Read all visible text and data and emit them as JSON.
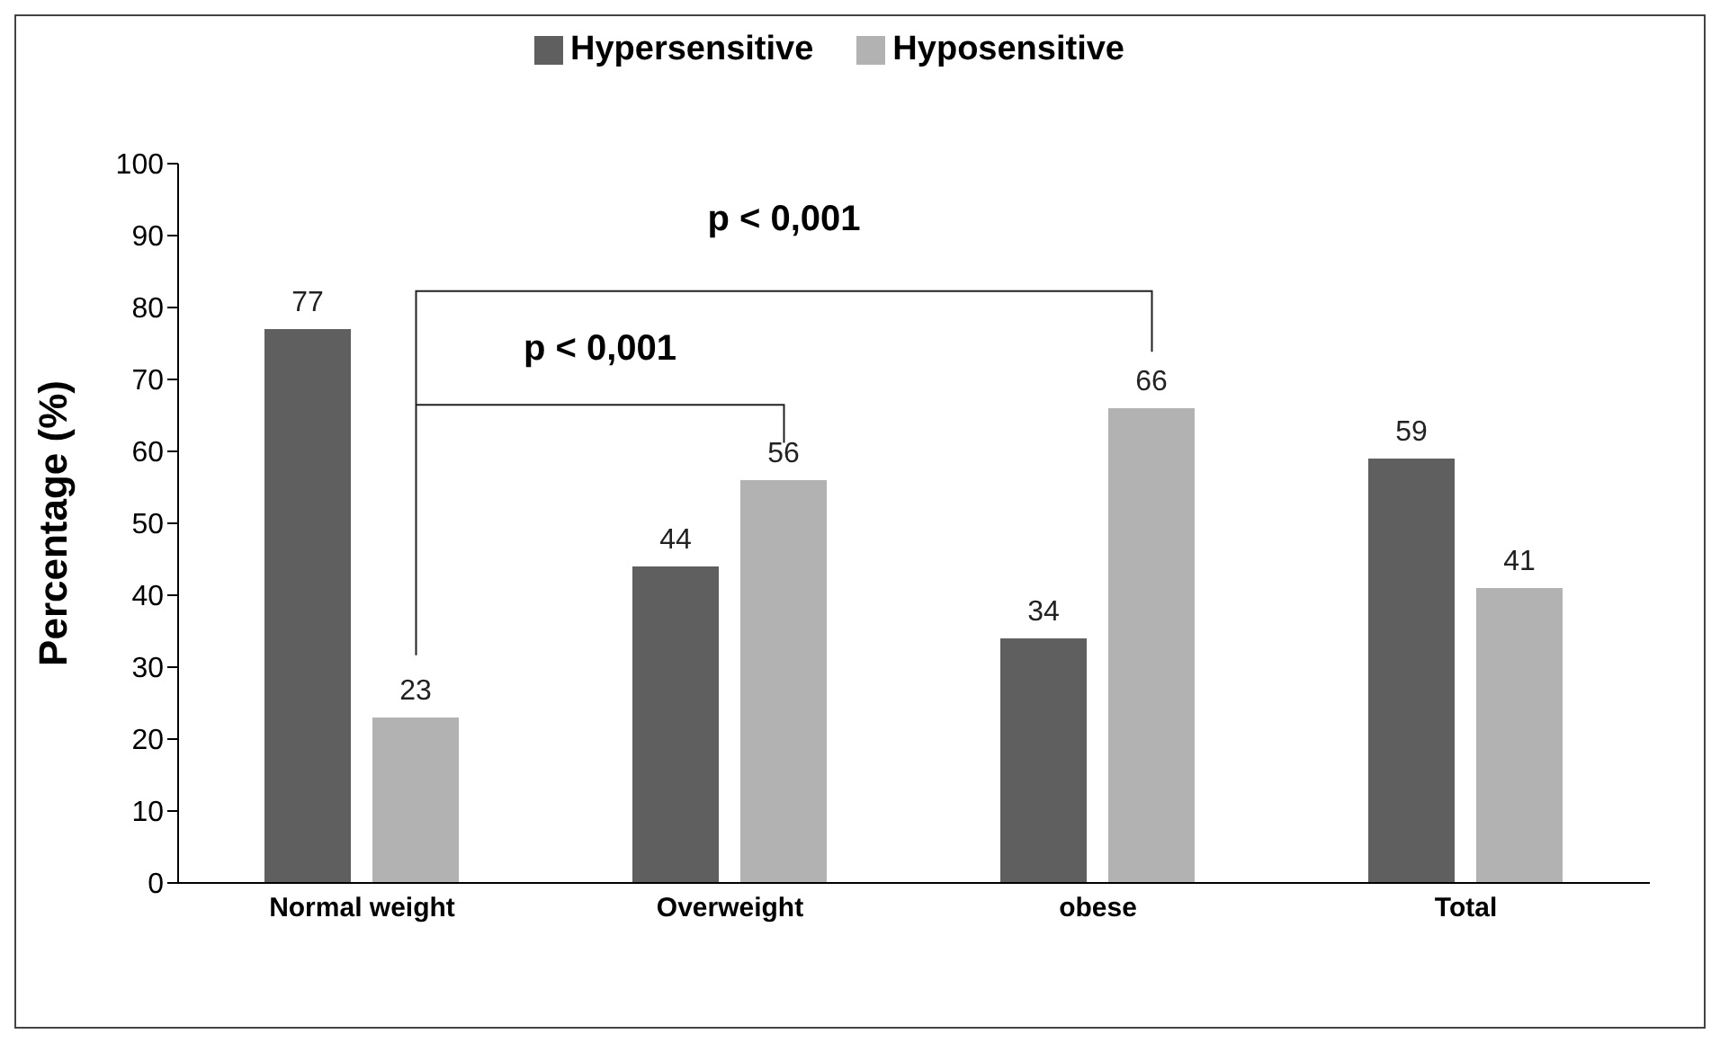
{
  "chart_data": {
    "type": "bar",
    "ylabel": "Percentage (%)",
    "categories": [
      "Normal weight",
      "Overweight",
      "obese",
      "Total"
    ],
    "series": [
      {
        "name": "Hypersensitive",
        "color": "#5f5f5f",
        "values": [
          77,
          44,
          34,
          59
        ]
      },
      {
        "name": "Hyposensitive",
        "color": "#b2b2b2",
        "values": [
          23,
          56,
          66,
          41
        ]
      }
    ],
    "ylim": [
      0,
      100
    ],
    "yticks": [
      0,
      10,
      20,
      30,
      40,
      50,
      60,
      70,
      80,
      90,
      100
    ],
    "grid": false,
    "legend": "top",
    "data_labels": true,
    "annotations": [
      "p < 0,001",
      "p < 0,001"
    ]
  }
}
